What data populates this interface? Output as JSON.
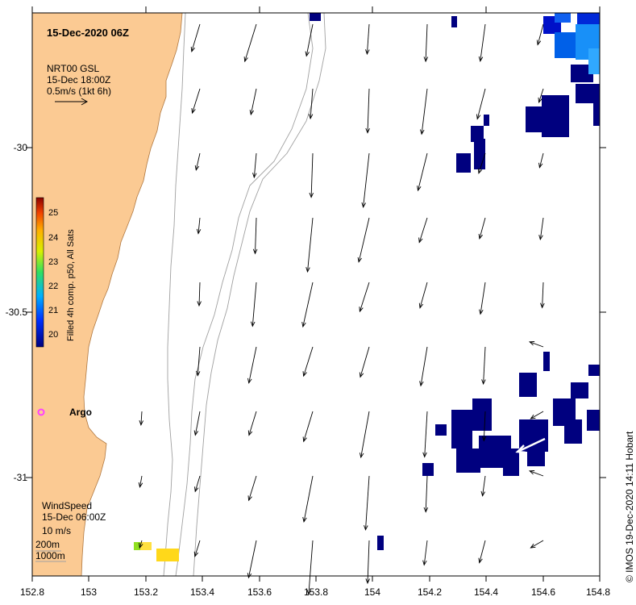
{
  "map": {
    "timestamp": "15-Dec-2020 06Z",
    "colors": {
      "land": "#fbca93",
      "land_edge": "#b07840",
      "sst_cold": "#00007f",
      "isobath": "#a0a0a0",
      "argo": "#ff40ff"
    },
    "current_legend": {
      "line1": "NRT00 GSL",
      "line2": "15-Dec 18:00Z",
      "line3": "0.5m/s (1kt 6h)"
    },
    "wind_legend": {
      "line1": "WindSpeed",
      "line2": "15-Dec 06:00Z",
      "line3": "10 m/s"
    },
    "isobath_legend": {
      "line1": "200m",
      "line2": "1000m"
    },
    "argo_label": "Argo",
    "colorbar": {
      "title": "Filled 4h comp. p50, All Sats",
      "ticks": [
        "25",
        "24",
        "23",
        "22",
        "21",
        "20"
      ],
      "min": 19.6,
      "max": 25.4
    },
    "y_ticks": [
      "-30",
      "-30.5",
      "-31"
    ],
    "x_ticks": [
      "152.8",
      "153",
      "153.2",
      "153.4",
      "153.6",
      "153.8",
      "154",
      "154.2",
      "154.4",
      "154.6",
      "154.8"
    ],
    "credit": "© IMOS 19-Dec-2020 14:11 Hobart"
  }
}
